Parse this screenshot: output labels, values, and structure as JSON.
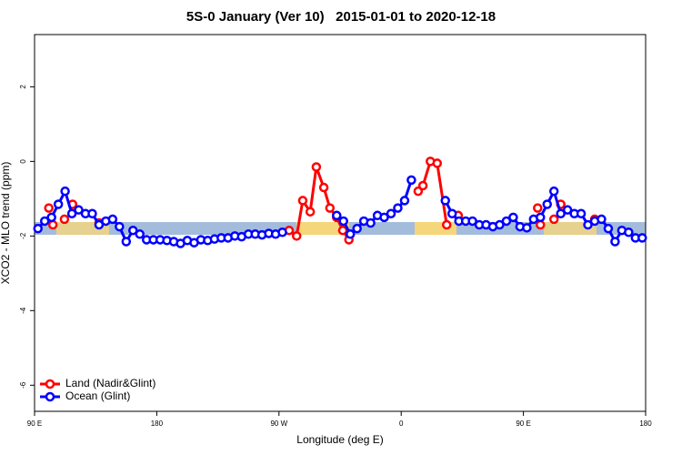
{
  "chart_data": {
    "type": "line",
    "title": "5S-0 January (Ver 10)   2015-01-01 to 2020-12-18",
    "xlabel": "Longitude (deg E)",
    "ylabel": "XCO2 - MLO trend (ppm)",
    "xlim": [
      90,
      540
    ],
    "ylim": [
      -6.7,
      3.4
    ],
    "xticks": [
      {
        "value": 90,
        "label": "90 E"
      },
      {
        "value": 180,
        "label": "180"
      },
      {
        "value": 270,
        "label": "90 W"
      },
      {
        "value": 360,
        "label": "0"
      },
      {
        "value": 450,
        "label": "90 E"
      },
      {
        "value": 540,
        "label": "180"
      }
    ],
    "yticks": [
      -6,
      -4,
      -2,
      0,
      2
    ],
    "legend": "bottom-left",
    "series": [
      {
        "name": "Land (Nadir&Glint)",
        "color": "#ff0000",
        "x": [
          100.5,
          null,
          103.5,
          null,
          112,
          null,
          118,
          null,
          137.5,
          null,
          277.5,
          283,
          287.5,
          293,
          297.5,
          303,
          307.5,
          312.5,
          317,
          321.5,
          null,
          372.5,
          376,
          381.5,
          386.5,
          393.5,
          null,
          402,
          null,
          460.5,
          null,
          462.5,
          null,
          472.5,
          null,
          477.5,
          null,
          502.5
        ],
        "values": [
          -1.25,
          null,
          -1.7,
          null,
          -1.55,
          null,
          -1.15,
          null,
          -1.65,
          null,
          -1.85,
          -2.0,
          -1.05,
          -1.35,
          -0.15,
          -0.7,
          -1.25,
          -1.5,
          -1.85,
          -2.1,
          null,
          -0.8,
          -0.65,
          0.0,
          -0.05,
          -1.7,
          null,
          -1.45,
          null,
          -1.25,
          null,
          -1.7,
          null,
          -1.55,
          null,
          -1.15,
          null,
          -1.55
        ]
      },
      {
        "name": "Ocean (Glint)",
        "color": "#0000ff",
        "x": [
          92.5,
          97.5,
          102.5,
          107.5,
          112.5,
          117.5,
          122.5,
          127.5,
          132.5,
          137.5,
          142.5,
          147.5,
          152.5,
          157.5,
          162.5,
          167.5,
          172.5,
          177.5,
          182.5,
          187.5,
          192.5,
          197.5,
          202.5,
          207.5,
          212.5,
          217.5,
          222.5,
          227.5,
          232.5,
          237.5,
          242.5,
          247.5,
          252.5,
          257.5,
          262.5,
          267.5,
          272.5,
          277.5,
          282.5,
          287.5,
          292.5,
          297.5,
          302.5,
          307.5,
          312.5,
          317.5,
          322.5,
          327.5,
          332.5,
          337.5,
          342.5,
          347.5,
          352.5,
          357.5,
          362.5,
          367.5,
          372.5,
          377.5,
          382.5,
          387.5,
          392.5,
          397.5,
          402.5,
          407.5,
          412.5,
          417.5,
          422.5,
          427.5,
          432.5,
          437.5,
          442.5,
          447.5,
          452.5,
          457.5,
          462.5,
          467.5,
          472.5,
          477.5,
          482.5,
          487.5,
          492.5,
          497.5,
          502.5,
          507.5,
          512.5,
          517.5,
          522.5,
          527.5,
          532.5,
          537.5
        ],
        "values": [
          -1.8,
          -1.6,
          -1.5,
          -1.15,
          -0.8,
          -1.4,
          -1.3,
          -1.4,
          -1.4,
          -1.7,
          -1.6,
          -1.55,
          -1.75,
          -2.15,
          -1.85,
          -1.95,
          -2.1,
          -2.1,
          -2.1,
          -2.12,
          -2.15,
          -2.2,
          -2.12,
          -2.18,
          -2.1,
          -2.12,
          -2.08,
          -2.05,
          -2.05,
          -2.0,
          -2.02,
          -1.95,
          -1.95,
          -1.97,
          -1.93,
          -1.95,
          -1.9,
          null,
          null,
          null,
          null,
          null,
          null,
          null,
          -1.45,
          -1.6,
          -1.95,
          -1.8,
          -1.6,
          -1.65,
          -1.45,
          -1.5,
          -1.4,
          -1.25,
          -1.05,
          -0.5,
          null,
          null,
          null,
          null,
          -1.05,
          -1.4,
          -1.6,
          -1.6,
          -1.6,
          -1.7,
          -1.7,
          -1.75,
          -1.7,
          -1.6,
          -1.5,
          -1.75,
          -1.78,
          -1.55,
          -1.5,
          -1.15,
          -0.8,
          -1.4,
          -1.3,
          -1.4,
          -1.4,
          -1.7,
          -1.6,
          -1.55,
          -1.8,
          -2.15,
          -1.85,
          -1.9,
          -2.05,
          -2.05
        ]
      }
    ]
  }
}
